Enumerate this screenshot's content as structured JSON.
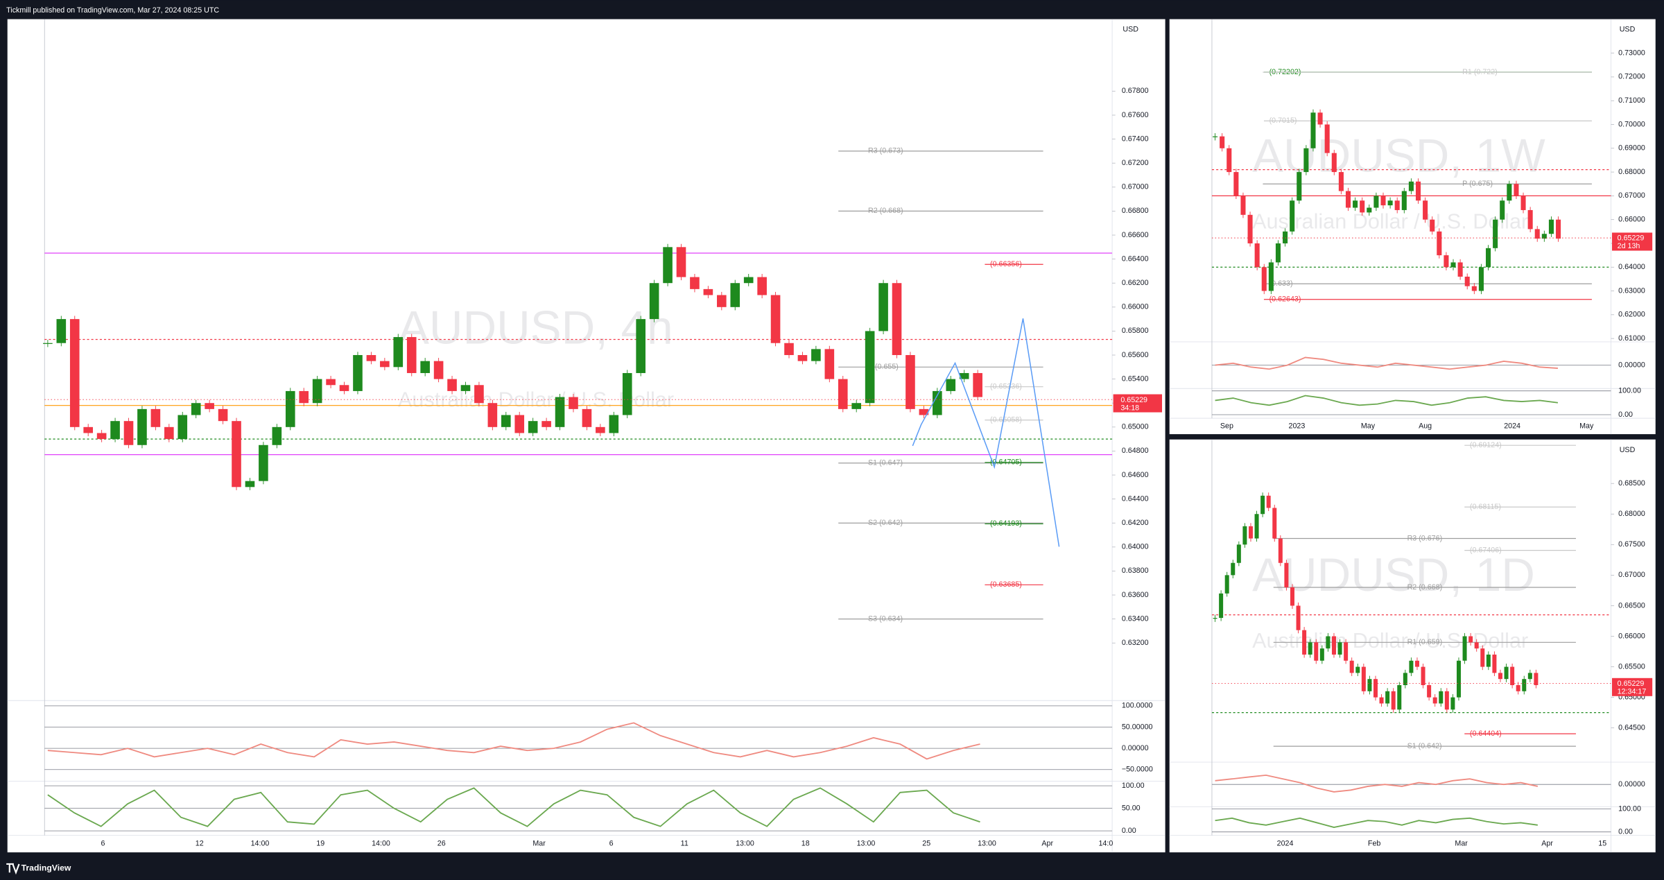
{
  "header": {
    "text": "Tickmill published on TradingView.com, Mar 27, 2024 08:25 UTC"
  },
  "footer": {
    "brand": "TradingView"
  },
  "chart_data": [
    {
      "type": "candlestick",
      "title": "AUDUSD, 4h",
      "subtitle": "Australian Dollar / U.S. Dollar",
      "currency": "USD",
      "colors": {
        "up": "#1e8a1e",
        "down": "#f23645"
      },
      "ylim": [
        0.6272,
        0.684
      ],
      "yticks": [
        {
          "value": 0.632,
          "label": "0.63200"
        },
        {
          "value": 0.634,
          "label": "0.63400"
        },
        {
          "value": 0.636,
          "label": "0.63600"
        },
        {
          "value": 0.638,
          "label": "0.63800"
        },
        {
          "value": 0.64,
          "label": "0.64000"
        },
        {
          "value": 0.642,
          "label": "0.64200"
        },
        {
          "value": 0.644,
          "label": "0.64400"
        },
        {
          "value": 0.646,
          "label": "0.64600"
        },
        {
          "value": 0.648,
          "label": "0.64800"
        },
        {
          "value": 0.65,
          "label": "0.65000"
        },
        {
          "value": 0.652,
          "label": "0.65200"
        },
        {
          "value": 0.654,
          "label": "0.65400"
        },
        {
          "value": 0.656,
          "label": "0.65600"
        },
        {
          "value": 0.658,
          "label": "0.65800"
        },
        {
          "value": 0.66,
          "label": "0.66000"
        },
        {
          "value": 0.662,
          "label": "0.66200"
        },
        {
          "value": 0.664,
          "label": "0.66400"
        },
        {
          "value": 0.666,
          "label": "0.66600"
        },
        {
          "value": 0.668,
          "label": "0.66800"
        },
        {
          "value": 0.67,
          "label": "0.67000"
        },
        {
          "value": 0.672,
          "label": "0.67200"
        },
        {
          "value": 0.674,
          "label": "0.67400"
        },
        {
          "value": 0.676,
          "label": "0.67600"
        },
        {
          "value": 0.678,
          "label": "0.67800"
        }
      ],
      "closes": [
        0.657,
        0.659,
        0.65,
        0.6495,
        0.649,
        0.6505,
        0.6485,
        0.6515,
        0.65,
        0.649,
        0.651,
        0.652,
        0.6515,
        0.6505,
        0.645,
        0.6455,
        0.6485,
        0.65,
        0.653,
        0.652,
        0.654,
        0.6535,
        0.653,
        0.656,
        0.6555,
        0.655,
        0.6575,
        0.6545,
        0.6555,
        0.654,
        0.653,
        0.6535,
        0.652,
        0.65,
        0.651,
        0.6495,
        0.6505,
        0.65,
        0.6525,
        0.6515,
        0.65,
        0.6495,
        0.651,
        0.6545,
        0.659,
        0.662,
        0.665,
        0.6625,
        0.6615,
        0.661,
        0.66,
        0.662,
        0.6625,
        0.661,
        0.657,
        0.656,
        0.6555,
        0.6565,
        0.654,
        0.6515,
        0.652,
        0.658,
        0.662,
        0.656,
        0.6515,
        0.651,
        0.653,
        0.654,
        0.6545,
        0.6525
      ],
      "levels": [
        {
          "label": "R3 (0.673)",
          "price": 0.673,
          "color": "#9e9e9e"
        },
        {
          "label": "R2 (0.668)",
          "price": 0.668,
          "color": "#9e9e9e"
        },
        {
          "label": "(0.66356)",
          "price": 0.66356,
          "color": "#f23645"
        },
        {
          "label": "P (0.655)",
          "price": 0.655,
          "color": "#9e9e9e"
        },
        {
          "label": "(0.65336)",
          "price": 0.65336,
          "color": "#c8c8c8"
        },
        {
          "label": "(0.65058)",
          "price": 0.65058,
          "color": "#c8c8c8"
        },
        {
          "label": "S1 (0.647)",
          "price": 0.647,
          "color": "#9e9e9e"
        },
        {
          "label": "(0.64705)",
          "price": 0.64705,
          "color": "#1e8a1e"
        },
        {
          "label": "S2 (0.642)",
          "price": 0.642,
          "color": "#9e9e9e"
        },
        {
          "label": "(0.64193)",
          "price": 0.64193,
          "color": "#1e8a1e"
        },
        {
          "label": "(0.63685)",
          "price": 0.63685,
          "color": "#f23645"
        },
        {
          "label": "S3 (0.634)",
          "price": 0.634,
          "color": "#9e9e9e"
        }
      ],
      "lines": [
        {
          "price": 0.6645,
          "color": "#e040fb",
          "dash": false
        },
        {
          "price": 0.6477,
          "color": "#e040fb",
          "dash": false
        },
        {
          "price": 0.6573,
          "color": "#f23645",
          "dash": true
        },
        {
          "price": 0.6518,
          "color": "#ff9800",
          "dash": false
        },
        {
          "price": 0.649,
          "color": "#1e8a1e",
          "dash": true
        }
      ],
      "price_tag": 0.65229,
      "countdown": "34:18",
      "xticks": [
        "6",
        "12",
        "14:00",
        "19",
        "14:00",
        "26",
        "Mar",
        "6",
        "11",
        "13:00",
        "18",
        "13:00",
        "25",
        "13:00",
        "Apr",
        "14:0"
      ],
      "oscillator": {
        "ylim": [
          -77.5,
          112.5
        ],
        "yticks": [
          {
            "value": 100,
            "label": "100.0000"
          },
          {
            "value": 50,
            "label": "50.00000"
          },
          {
            "value": 0,
            "label": "0.00000"
          },
          {
            "value": -50,
            "label": "−50.0000"
          }
        ],
        "values": [
          -5,
          -10,
          -15,
          0,
          -20,
          -10,
          0,
          -15,
          10,
          -10,
          -20,
          20,
          10,
          15,
          5,
          -5,
          -10,
          5,
          -5,
          0,
          15,
          45,
          60,
          30,
          10,
          -10,
          -20,
          -5,
          -20,
          -10,
          5,
          25,
          10,
          -25,
          -5,
          10
        ]
      },
      "stochastic": {
        "ylim": [
          -10,
          110
        ],
        "yticks": [
          {
            "value": 100,
            "label": "100.00"
          },
          {
            "value": 50,
            "label": "50.00"
          },
          {
            "value": 0,
            "label": "0.00"
          }
        ],
        "values": [
          80,
          40,
          10,
          60,
          90,
          30,
          10,
          70,
          85,
          20,
          15,
          80,
          90,
          50,
          20,
          70,
          95,
          40,
          10,
          60,
          90,
          80,
          30,
          10,
          60,
          90,
          40,
          10,
          70,
          95,
          60,
          20,
          85,
          90,
          40,
          20
        ]
      }
    },
    {
      "type": "candlestick",
      "title": "AUDUSD, 1W",
      "subtitle": "Australian Dollar / U.S. Dollar",
      "currency": "USD",
      "colors": {
        "up": "#1e8a1e",
        "down": "#f23645"
      },
      "ylim": [
        0.6086,
        0.7443
      ],
      "yticks": [
        {
          "value": 0.61,
          "label": "0.61000"
        },
        {
          "value": 0.62,
          "label": "0.62000"
        },
        {
          "value": 0.63,
          "label": "0.63000"
        },
        {
          "value": 0.64,
          "label": "0.64000"
        },
        {
          "value": 0.65,
          "label": "0.65000"
        },
        {
          "value": 0.66,
          "label": "0.66000"
        },
        {
          "value": 0.67,
          "label": "0.67000"
        },
        {
          "value": 0.68,
          "label": "0.68000"
        },
        {
          "value": 0.69,
          "label": "0.69000"
        },
        {
          "value": 0.7,
          "label": "0.70000"
        },
        {
          "value": 0.71,
          "label": "0.71000"
        },
        {
          "value": 0.72,
          "label": "0.72000"
        },
        {
          "value": 0.73,
          "label": "0.73000"
        }
      ],
      "closes": [
        0.695,
        0.69,
        0.68,
        0.67,
        0.662,
        0.65,
        0.64,
        0.63,
        0.642,
        0.65,
        0.655,
        0.668,
        0.68,
        0.69,
        0.705,
        0.7,
        0.688,
        0.68,
        0.672,
        0.665,
        0.668,
        0.663,
        0.665,
        0.67,
        0.666,
        0.668,
        0.664,
        0.672,
        0.676,
        0.668,
        0.66,
        0.655,
        0.645,
        0.64,
        0.642,
        0.636,
        0.632,
        0.63,
        0.64,
        0.648,
        0.66,
        0.668,
        0.675,
        0.67,
        0.664,
        0.656,
        0.652,
        0.654,
        0.66,
        0.652
      ],
      "levels": [
        {
          "label": "(0.72202)",
          "price": 0.72202,
          "color": "#1e8a1e"
        },
        {
          "label": "R1 (0.722)",
          "price": 0.722,
          "color": "#c8c8c8"
        },
        {
          "label": "(0.7015)",
          "price": 0.7015,
          "color": "#c8c8c8"
        },
        {
          "label": "P (0.675)",
          "price": 0.675,
          "color": "#9e9e9e"
        },
        {
          "label": "(0.62643)",
          "price": 0.62643,
          "color": "#f23645"
        },
        {
          "label": "(0.633)",
          "price": 0.633,
          "color": "#9e9e9e"
        }
      ],
      "lines": [
        {
          "price": 0.681,
          "color": "#f23645",
          "dash": true
        },
        {
          "price": 0.67,
          "color": "#f23645",
          "dash": false
        },
        {
          "price": 0.64,
          "color": "#1e8a1e",
          "dash": true
        }
      ],
      "price_tag": 0.65229,
      "countdown": "2d 13h",
      "xticks": [
        "Sep",
        "2023",
        "May",
        "Aug",
        "2024",
        "May"
      ],
      "oscillator": {
        "ylim": [
          -60,
          60
        ],
        "yticks": [
          {
            "value": 0,
            "label": "0.00000"
          }
        ],
        "values": [
          0,
          5,
          -5,
          -10,
          0,
          20,
          15,
          5,
          0,
          -5,
          5,
          0,
          -5,
          -10,
          -5,
          0,
          10,
          5,
          -5,
          -8
        ]
      },
      "stochastic": {
        "ylim": [
          -15,
          110
        ],
        "yticks": [
          {
            "value": 100,
            "label": "100.00"
          },
          {
            "value": 0,
            "label": "0.00"
          }
        ],
        "values": [
          60,
          70,
          50,
          40,
          55,
          80,
          70,
          50,
          40,
          45,
          60,
          55,
          40,
          50,
          70,
          75,
          60,
          55,
          60,
          50
        ]
      }
    },
    {
      "type": "candlestick",
      "title": "AUDUSD, 1D",
      "subtitle": "Australian Dollar / U.S. Dollar",
      "currency": "USD",
      "colors": {
        "up": "#1e8a1e",
        "down": "#f23645"
      },
      "ylim": [
        0.6394,
        0.6922
      ],
      "yticks": [
        {
          "value": 0.645,
          "label": "0.64500"
        },
        {
          "value": 0.65,
          "label": "0.65000"
        },
        {
          "value": 0.655,
          "label": "0.65500"
        },
        {
          "value": 0.66,
          "label": "0.66000"
        },
        {
          "value": 0.665,
          "label": "0.66500"
        },
        {
          "value": 0.67,
          "label": "0.67000"
        },
        {
          "value": 0.675,
          "label": "0.67500"
        },
        {
          "value": 0.68,
          "label": "0.68000"
        },
        {
          "value": 0.685,
          "label": "0.68500"
        }
      ],
      "closes": [
        0.663,
        0.667,
        0.67,
        0.672,
        0.675,
        0.678,
        0.676,
        0.68,
        0.683,
        0.681,
        0.676,
        0.672,
        0.668,
        0.665,
        0.661,
        0.657,
        0.659,
        0.656,
        0.658,
        0.66,
        0.657,
        0.659,
        0.656,
        0.654,
        0.655,
        0.651,
        0.653,
        0.65,
        0.649,
        0.651,
        0.648,
        0.652,
        0.654,
        0.656,
        0.655,
        0.652,
        0.65,
        0.649,
        0.651,
        0.648,
        0.65,
        0.656,
        0.66,
        0.659,
        0.658,
        0.655,
        0.657,
        0.654,
        0.653,
        0.655,
        0.652,
        0.651,
        0.653,
        0.654,
        0.652
      ],
      "levels": [
        {
          "label": "(0.69124)",
          "price": 0.69124,
          "color": "#c8c8c8"
        },
        {
          "label": "(0.68115)",
          "price": 0.68115,
          "color": "#c8c8c8"
        },
        {
          "label": "R3 (0.676)",
          "price": 0.676,
          "color": "#9e9e9e"
        },
        {
          "label": "(0.67406)",
          "price": 0.67406,
          "color": "#c8c8c8"
        },
        {
          "label": "R2 (0.668)",
          "price": 0.668,
          "color": "#9e9e9e"
        },
        {
          "label": "R1 (0.659)",
          "price": 0.659,
          "color": "#9e9e9e"
        },
        {
          "label": "(0.64404)",
          "price": 0.64404,
          "color": "#f23645"
        },
        {
          "label": "S1 (0.642)",
          "price": 0.642,
          "color": "#9e9e9e"
        }
      ],
      "lines": [
        {
          "price": 0.6635,
          "color": "#f23645",
          "dash": true
        },
        {
          "price": 0.6475,
          "color": "#1e8a1e",
          "dash": true
        }
      ],
      "price_tag": 0.65229,
      "countdown": "12:34:17",
      "xticks": [
        "2024",
        "Feb",
        "Mar",
        "Apr",
        "15"
      ],
      "oscillator": {
        "ylim": [
          -60,
          60
        ],
        "yticks": [
          {
            "value": 0,
            "label": "0.00000"
          }
        ],
        "values": [
          10,
          15,
          20,
          25,
          15,
          5,
          -10,
          -20,
          -15,
          -5,
          0,
          -5,
          5,
          0,
          10,
          15,
          5,
          0,
          5,
          -5
        ]
      },
      "stochastic": {
        "ylim": [
          -15,
          110
        ],
        "yticks": [
          {
            "value": 100,
            "label": "100.00"
          },
          {
            "value": 0,
            "label": "0.00"
          }
        ],
        "values": [
          50,
          60,
          40,
          30,
          45,
          60,
          40,
          20,
          35,
          50,
          45,
          30,
          50,
          40,
          55,
          60,
          45,
          35,
          40,
          30
        ]
      }
    }
  ]
}
